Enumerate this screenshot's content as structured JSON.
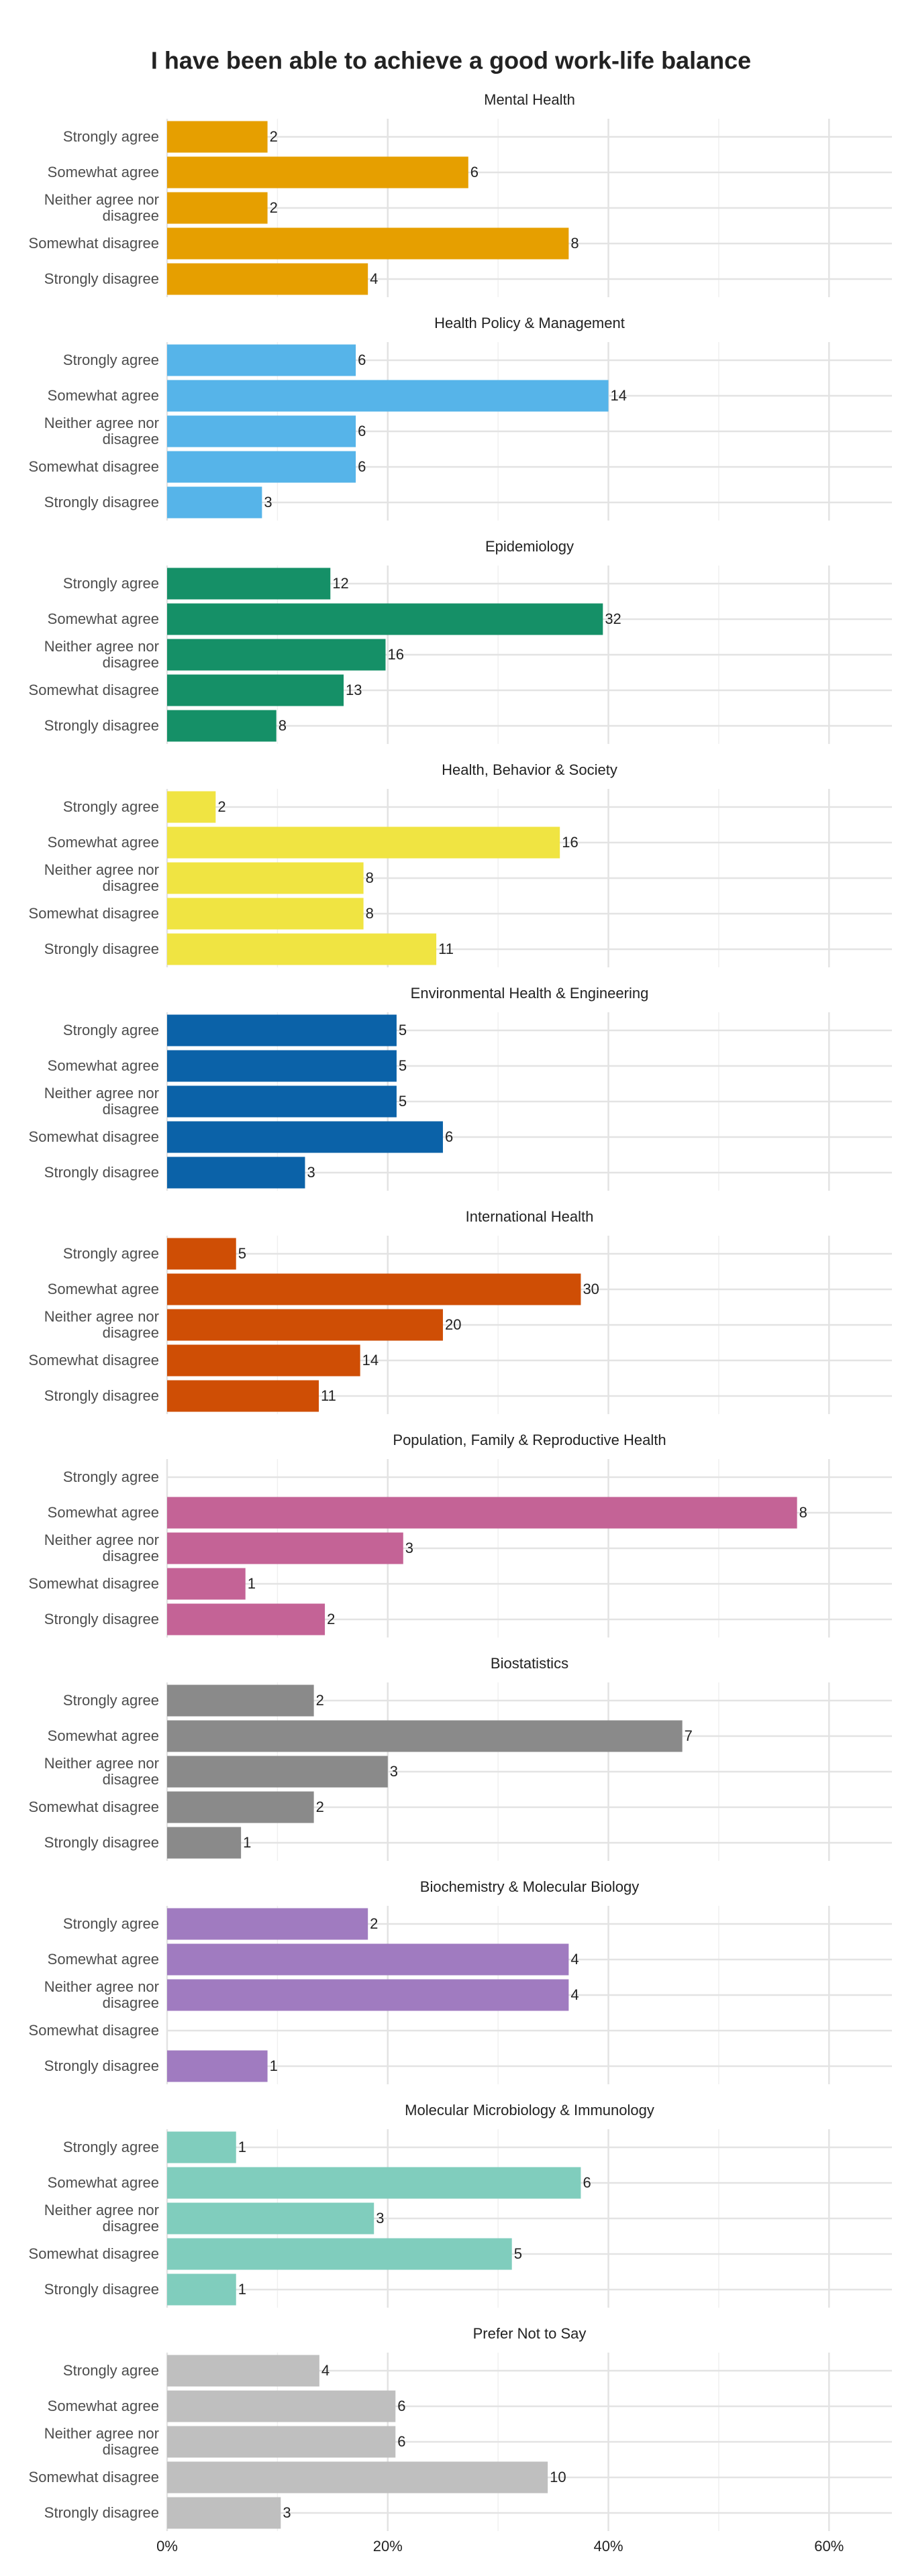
{
  "chart_data": {
    "type": "bar",
    "title": "I have been able to achieve a good work-life balance",
    "categories": [
      "Strongly agree",
      "Somewhat agree",
      "Neither agree nor disagree",
      "Somewhat disagree",
      "Strongly disagree"
    ],
    "xlim": [
      0,
      65.7
    ],
    "xticks": [
      {
        "value": 0,
        "label": "0%"
      },
      {
        "value": 20,
        "label": "20%"
      },
      {
        "value": 40,
        "label": "40%"
      },
      {
        "value": 60,
        "label": "60%"
      }
    ],
    "minor_xticks": [
      10,
      30,
      50
    ],
    "grid": true,
    "series": [
      {
        "name": "Mental Health",
        "color": "#E69F00",
        "values": [
          9.1,
          27.3,
          9.1,
          36.4,
          18.2
        ],
        "counts": [
          2,
          6,
          2,
          8,
          4
        ]
      },
      {
        "name": "Health Policy & Management",
        "color": "#56B4E9",
        "values": [
          17.1,
          40.0,
          17.1,
          17.1,
          8.6
        ],
        "counts": [
          6,
          14,
          6,
          6,
          3
        ]
      },
      {
        "name": "Epidemiology",
        "color": "#159067",
        "values": [
          14.8,
          39.5,
          19.8,
          16.0,
          9.9
        ],
        "counts": [
          12,
          32,
          16,
          13,
          8
        ]
      },
      {
        "name": "Health, Behavior & Society",
        "color": "#F0E442",
        "values": [
          4.4,
          35.6,
          17.8,
          17.8,
          24.4
        ],
        "counts": [
          2,
          16,
          8,
          8,
          11
        ]
      },
      {
        "name": "Environmental Health & Engineering",
        "color": "#0B62A8",
        "values": [
          20.8,
          20.8,
          20.8,
          25.0,
          12.5
        ],
        "counts": [
          5,
          5,
          5,
          6,
          3
        ]
      },
      {
        "name": "International Health",
        "color": "#CF4E05",
        "values": [
          6.25,
          37.5,
          25.0,
          17.5,
          13.75
        ],
        "counts": [
          5,
          30,
          20,
          14,
          11
        ]
      },
      {
        "name": "Population, Family & Reproductive Health",
        "color": "#C46396",
        "values": [
          null,
          57.1,
          21.4,
          7.1,
          14.3
        ],
        "counts": [
          null,
          8,
          3,
          1,
          2
        ]
      },
      {
        "name": "Biostatistics",
        "color": "#8A8A8A",
        "values": [
          13.3,
          46.7,
          20.0,
          13.3,
          6.7
        ],
        "counts": [
          2,
          7,
          3,
          2,
          1
        ]
      },
      {
        "name": "Biochemistry & Molecular Biology",
        "color": "#A07BC0",
        "values": [
          18.2,
          36.4,
          36.4,
          null,
          9.1
        ],
        "counts": [
          2,
          4,
          4,
          null,
          1
        ]
      },
      {
        "name": "Molecular Microbiology & Immunology",
        "color": "#80CDBD",
        "values": [
          6.25,
          37.5,
          18.75,
          31.25,
          6.25
        ],
        "counts": [
          1,
          6,
          3,
          5,
          1
        ]
      },
      {
        "name": "Prefer Not to Say",
        "color": "#BFBFBF",
        "values": [
          13.8,
          20.7,
          20.7,
          34.5,
          10.3
        ],
        "counts": [
          4,
          6,
          6,
          10,
          3
        ]
      }
    ]
  }
}
